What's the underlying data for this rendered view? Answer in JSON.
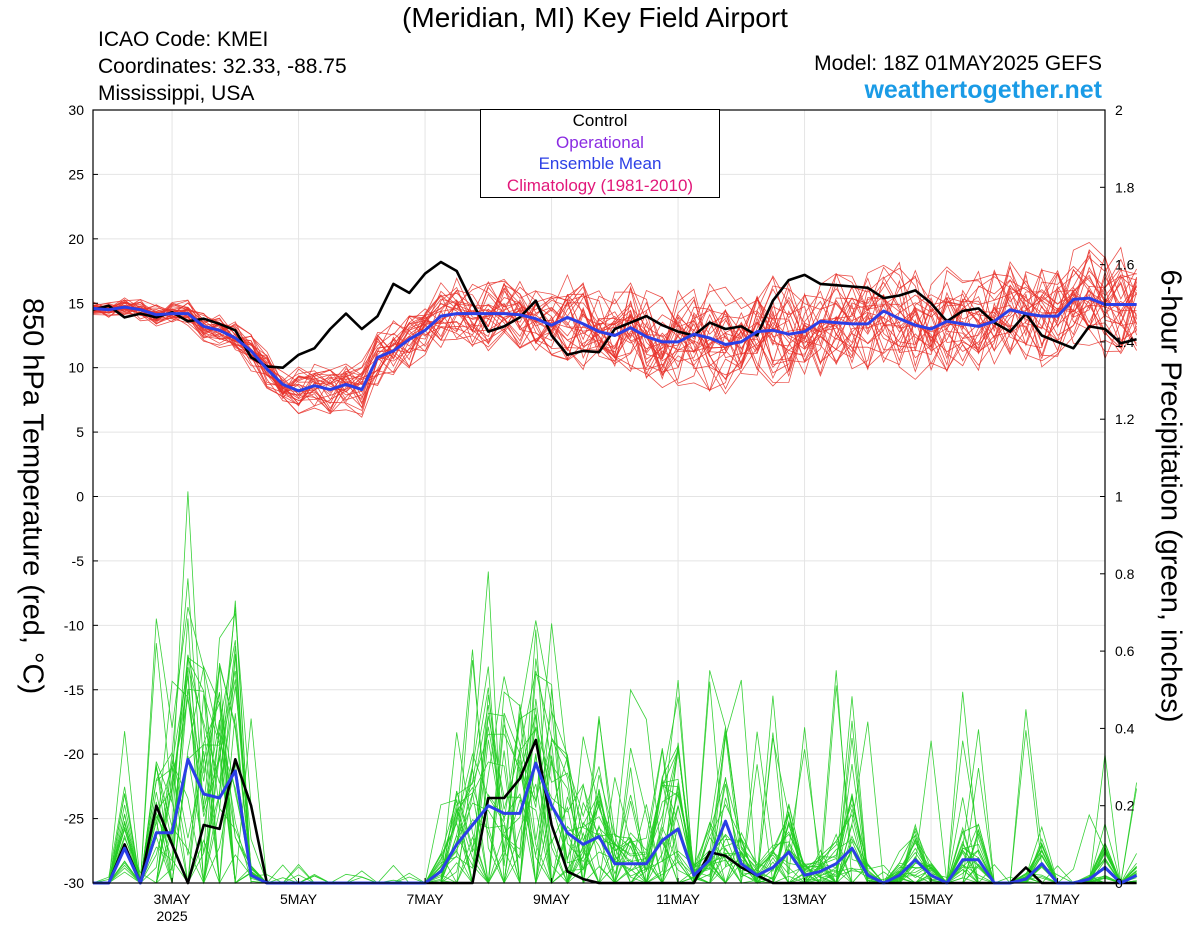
{
  "header": {
    "title": "(Meridian, MI) Key Field Airport",
    "icao": "ICAO Code: KMEI",
    "coords": "Coordinates: 32.33, -88.75",
    "region": "Mississippi, USA",
    "model": "Model: 18Z 01MAY2025 GEFS",
    "site": "weathertogether.net"
  },
  "colors": {
    "members_temp": "#e8312a",
    "members_precip": "#22cc22",
    "control": "#000000",
    "operational": "#8a2be2",
    "ensemble_mean": "#2b3fe6",
    "climatology": "#e2187a",
    "site": "#1a9be6"
  },
  "chart_data": {
    "type": "line",
    "title": "(Meridian, MI) Key Field Airport",
    "ylabel": "850 hPa Temperature (red, °C)",
    "y2label": "6-hour Precipitation (green, inches)",
    "ylim": [
      -30,
      30
    ],
    "y2lim": [
      0,
      2
    ],
    "yticks": [
      30,
      25,
      20,
      15,
      10,
      5,
      0,
      -5,
      -10,
      -15,
      -20,
      -25,
      -30
    ],
    "y2ticks": [
      2,
      1.8,
      1.6,
      1.4,
      1.2,
      1,
      0.8,
      0.6,
      0.4,
      0.2,
      0
    ],
    "xlim": [
      1.75,
      17.75
    ],
    "xticks": [
      {
        "day": 3,
        "label": "3MAY",
        "sub": "2025"
      },
      {
        "day": 5,
        "label": "5MAY",
        "sub": ""
      },
      {
        "day": 7,
        "label": "7MAY",
        "sub": ""
      },
      {
        "day": 9,
        "label": "9MAY",
        "sub": ""
      },
      {
        "day": 11,
        "label": "11MAY",
        "sub": ""
      },
      {
        "day": 13,
        "label": "13MAY",
        "sub": ""
      },
      {
        "day": 15,
        "label": "15MAY",
        "sub": ""
      },
      {
        "day": 17,
        "label": "17MAY",
        "sub": ""
      }
    ],
    "grid": true,
    "legend_position": "top-center",
    "legend": [
      "Control",
      "Operational",
      "Ensemble Mean",
      "Climatology (1981-2010)"
    ],
    "x_start_day": 1.75,
    "x_step_days": 0.25,
    "series_temp": [
      {
        "name": "Control",
        "values": [
          14.5,
          14.8,
          13.9,
          14.2,
          13.9,
          14.3,
          13.6,
          13.8,
          13.4,
          12.9,
          10.8,
          10.1,
          10.0,
          11.0,
          11.5,
          13.0,
          14.2,
          13.0,
          14.0,
          16.5,
          15.8,
          17.3,
          18.2,
          17.5,
          15.0,
          12.8,
          13.2,
          13.9,
          15.2,
          12.5,
          11.0,
          11.3,
          11.2,
          13.0,
          13.5,
          14.0,
          13.3,
          12.8,
          12.5,
          13.5,
          13.0,
          13.2,
          12.5,
          15.2,
          16.8,
          17.2,
          16.5,
          16.4,
          16.3,
          16.2,
          15.4,
          15.6,
          16.0,
          15.0,
          13.6,
          14.4,
          14.6,
          13.5,
          12.8,
          14.2,
          12.5,
          12.0,
          11.5,
          13.2,
          13.0,
          11.9,
          12.2
        ]
      },
      {
        "name": "Ensemble Mean",
        "values": [
          14.6,
          14.5,
          14.7,
          14.5,
          14.1,
          14.2,
          14.2,
          13.2,
          12.9,
          12.3,
          11.3,
          9.9,
          8.7,
          8.2,
          8.6,
          8.3,
          8.7,
          8.3,
          10.8,
          11.3,
          12.2,
          12.9,
          14.0,
          14.2,
          14.2,
          14.2,
          14.2,
          14.1,
          13.8,
          13.3,
          13.9,
          13.4,
          12.8,
          12.5,
          13.1,
          12.4,
          12.0,
          12.0,
          12.6,
          12.3,
          11.8,
          12.0,
          12.8,
          12.9,
          12.6,
          12.8,
          13.6,
          13.5,
          13.4,
          13.4,
          14.4,
          13.8,
          13.3,
          13.0,
          13.6,
          13.4,
          13.2,
          13.6,
          14.5,
          14.2,
          14.0,
          14.0,
          15.3,
          15.4,
          14.9,
          14.9,
          14.9
        ]
      }
    ],
    "series_precip": [
      {
        "name": "Control",
        "values": [
          0,
          0,
          0.1,
          0,
          0.2,
          0.1,
          0,
          0.15,
          0.14,
          0.32,
          0.2,
          0,
          0,
          0,
          0,
          0,
          0,
          0,
          0,
          0,
          0,
          0,
          0,
          0,
          0,
          0.22,
          0.22,
          0.27,
          0.37,
          0.15,
          0.03,
          0.01,
          0,
          0,
          0,
          0,
          0,
          0,
          0,
          0.08,
          0.07,
          0.04,
          0.02,
          0,
          0,
          0,
          0,
          0,
          0,
          0,
          0,
          0,
          0,
          0,
          0,
          0,
          0,
          0,
          0,
          0.04,
          0,
          0,
          0,
          0,
          0,
          0,
          0
        ]
      },
      {
        "name": "Ensemble Mean",
        "values": [
          0,
          0,
          0.09,
          0,
          0.13,
          0.13,
          0.32,
          0.23,
          0.22,
          0.29,
          0.02,
          0,
          0,
          0,
          0,
          0,
          0,
          0,
          0,
          0,
          0,
          0,
          0.03,
          0.1,
          0.15,
          0.2,
          0.18,
          0.18,
          0.31,
          0.2,
          0.13,
          0.1,
          0.12,
          0.05,
          0.05,
          0.05,
          0.11,
          0.14,
          0.02,
          0.06,
          0.16,
          0.05,
          0.02,
          0.04,
          0.08,
          0.02,
          0.03,
          0.05,
          0.09,
          0.02,
          0,
          0.02,
          0.06,
          0.02,
          0,
          0.06,
          0.06,
          0,
          0,
          0.01,
          0.05,
          0,
          0,
          0.01,
          0.04,
          0,
          0.02
        ]
      }
    ]
  }
}
